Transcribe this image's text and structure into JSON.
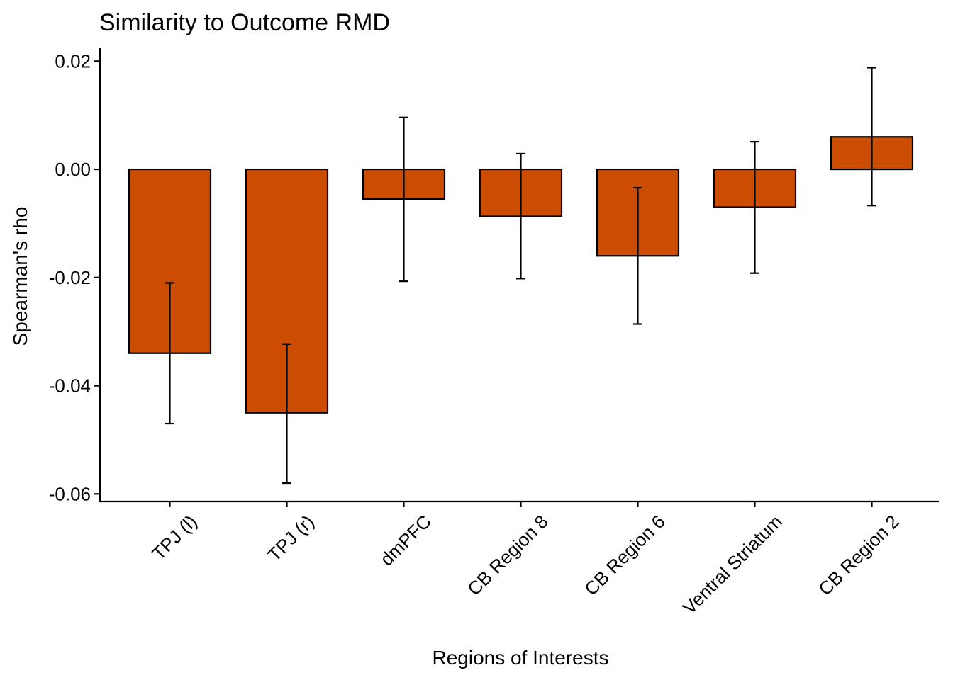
{
  "chart_data": {
    "type": "bar",
    "title": "Similarity to Outcome RMD",
    "xlabel": "Regions of Interests",
    "ylabel": "Spearman's rho",
    "categories": [
      "TPJ (l)",
      "TPJ (r)",
      "dmPFC",
      "CB Region 8",
      "CB Region 6",
      "Ventral Striatum",
      "CB Region 2"
    ],
    "values": [
      -0.034,
      -0.045,
      -0.0055,
      -0.0087,
      -0.016,
      -0.007,
      0.006
    ],
    "error_low": [
      -0.047,
      -0.058,
      -0.0207,
      -0.0202,
      -0.0286,
      -0.0192,
      -0.0067
    ],
    "error_high": [
      -0.021,
      -0.0323,
      0.0096,
      0.0029,
      -0.0034,
      0.0051,
      0.0188
    ],
    "ylim": [
      -0.0614,
      0.0224
    ],
    "yticks": [
      -0.06,
      -0.04,
      -0.02,
      0.0,
      0.02
    ],
    "ytick_labels": [
      "-0.06",
      "-0.04",
      "-0.02",
      "0.00",
      "0.02"
    ],
    "grid": false,
    "legend": "none",
    "bar_color": "#CC4C02",
    "bar_outline_color": "#000000"
  }
}
